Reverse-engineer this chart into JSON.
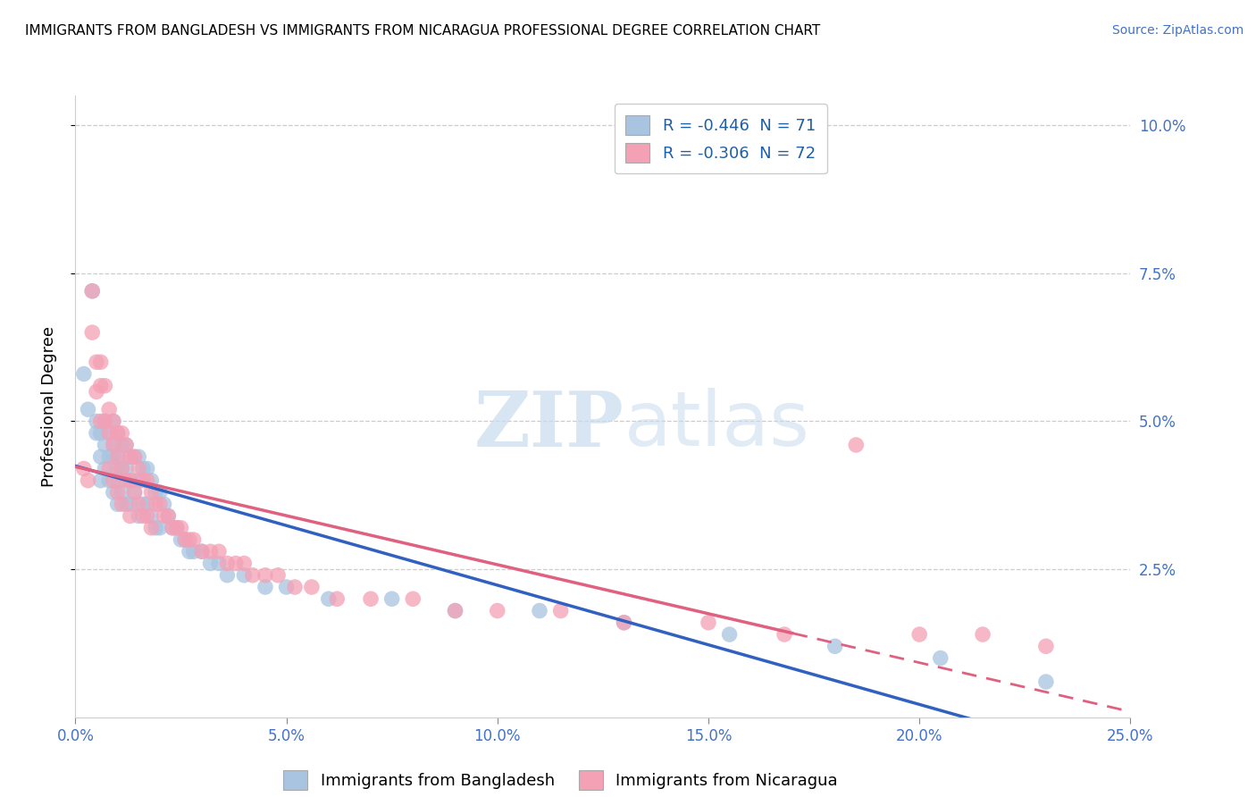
{
  "title": "IMMIGRANTS FROM BANGLADESH VS IMMIGRANTS FROM NICARAGUA PROFESSIONAL DEGREE CORRELATION CHART",
  "source": "Source: ZipAtlas.com",
  "ylabel": "Professional Degree",
  "xlim": [
    0.0,
    0.25
  ],
  "ylim": [
    0.0,
    0.105
  ],
  "xtick_vals": [
    0.0,
    0.05,
    0.1,
    0.15,
    0.2,
    0.25
  ],
  "xtick_labels": [
    "0.0%",
    "5.0%",
    "10.0%",
    "15.0%",
    "20.0%",
    "25.0%"
  ],
  "ytick_vals": [
    0.025,
    0.05,
    0.075,
    0.1
  ],
  "ytick_labels": [
    "2.5%",
    "5.0%",
    "7.5%",
    "10.0%"
  ],
  "r_bangladesh": -0.446,
  "n_bangladesh": 71,
  "r_nicaragua": -0.306,
  "n_nicaragua": 72,
  "color_bangladesh": "#A8C4E0",
  "color_nicaragua": "#F4A0B5",
  "line_color_bangladesh": "#3060C0",
  "line_color_nicaragua": "#E06080",
  "legend_entries": [
    "Immigrants from Bangladesh",
    "Immigrants from Nicaragua"
  ],
  "watermark_zip": "ZIP",
  "watermark_atlas": "atlas",
  "bangladesh_x": [
    0.002,
    0.003,
    0.004,
    0.005,
    0.005,
    0.006,
    0.006,
    0.006,
    0.007,
    0.007,
    0.007,
    0.008,
    0.008,
    0.008,
    0.009,
    0.009,
    0.009,
    0.009,
    0.01,
    0.01,
    0.01,
    0.01,
    0.01,
    0.011,
    0.011,
    0.011,
    0.012,
    0.012,
    0.012,
    0.013,
    0.013,
    0.013,
    0.014,
    0.014,
    0.015,
    0.015,
    0.015,
    0.016,
    0.016,
    0.017,
    0.017,
    0.018,
    0.018,
    0.019,
    0.019,
    0.02,
    0.02,
    0.021,
    0.022,
    0.023,
    0.024,
    0.025,
    0.026,
    0.027,
    0.028,
    0.03,
    0.032,
    0.034,
    0.036,
    0.04,
    0.045,
    0.05,
    0.06,
    0.075,
    0.09,
    0.11,
    0.13,
    0.155,
    0.18,
    0.205,
    0.23
  ],
  "bangladesh_y": [
    0.058,
    0.052,
    0.072,
    0.05,
    0.048,
    0.048,
    0.044,
    0.04,
    0.05,
    0.046,
    0.042,
    0.048,
    0.044,
    0.04,
    0.05,
    0.046,
    0.044,
    0.038,
    0.048,
    0.044,
    0.042,
    0.04,
    0.036,
    0.046,
    0.042,
    0.038,
    0.046,
    0.042,
    0.036,
    0.044,
    0.04,
    0.036,
    0.044,
    0.038,
    0.044,
    0.04,
    0.034,
    0.042,
    0.036,
    0.042,
    0.036,
    0.04,
    0.034,
    0.038,
    0.032,
    0.038,
    0.032,
    0.036,
    0.034,
    0.032,
    0.032,
    0.03,
    0.03,
    0.028,
    0.028,
    0.028,
    0.026,
    0.026,
    0.024,
    0.024,
    0.022,
    0.022,
    0.02,
    0.02,
    0.018,
    0.018,
    0.016,
    0.014,
    0.012,
    0.01,
    0.006
  ],
  "nicaragua_x": [
    0.002,
    0.003,
    0.004,
    0.004,
    0.005,
    0.005,
    0.006,
    0.006,
    0.006,
    0.007,
    0.007,
    0.008,
    0.008,
    0.008,
    0.009,
    0.009,
    0.009,
    0.01,
    0.01,
    0.01,
    0.011,
    0.011,
    0.011,
    0.012,
    0.012,
    0.013,
    0.013,
    0.013,
    0.014,
    0.014,
    0.015,
    0.015,
    0.016,
    0.016,
    0.017,
    0.017,
    0.018,
    0.018,
    0.019,
    0.02,
    0.021,
    0.022,
    0.023,
    0.024,
    0.025,
    0.026,
    0.027,
    0.028,
    0.03,
    0.032,
    0.034,
    0.036,
    0.038,
    0.04,
    0.042,
    0.045,
    0.048,
    0.052,
    0.056,
    0.062,
    0.07,
    0.08,
    0.09,
    0.1,
    0.115,
    0.13,
    0.15,
    0.168,
    0.185,
    0.2,
    0.215,
    0.23
  ],
  "nicaragua_y": [
    0.042,
    0.04,
    0.072,
    0.065,
    0.06,
    0.055,
    0.06,
    0.056,
    0.05,
    0.056,
    0.05,
    0.052,
    0.048,
    0.042,
    0.05,
    0.046,
    0.04,
    0.048,
    0.044,
    0.038,
    0.048,
    0.042,
    0.036,
    0.046,
    0.04,
    0.044,
    0.04,
    0.034,
    0.044,
    0.038,
    0.042,
    0.036,
    0.04,
    0.034,
    0.04,
    0.034,
    0.038,
    0.032,
    0.036,
    0.036,
    0.034,
    0.034,
    0.032,
    0.032,
    0.032,
    0.03,
    0.03,
    0.03,
    0.028,
    0.028,
    0.028,
    0.026,
    0.026,
    0.026,
    0.024,
    0.024,
    0.024,
    0.022,
    0.022,
    0.02,
    0.02,
    0.02,
    0.018,
    0.018,
    0.018,
    0.016,
    0.016,
    0.014,
    0.046,
    0.014,
    0.014,
    0.012
  ]
}
